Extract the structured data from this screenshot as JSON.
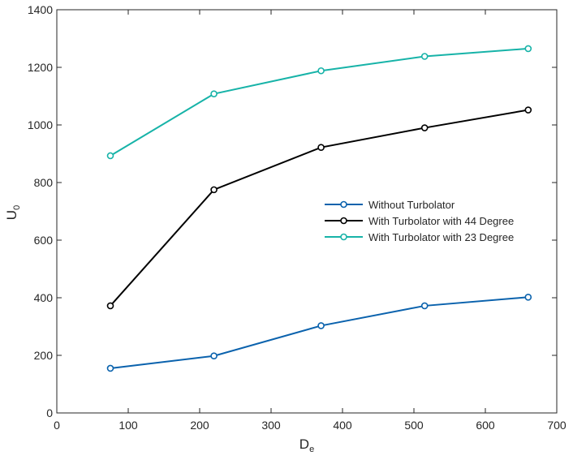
{
  "chart_data": {
    "type": "line",
    "xlabel": "D",
    "xlabel_sub": "e",
    "ylabel": "U",
    "ylabel_sub": "0",
    "xlim": [
      0,
      700
    ],
    "ylim": [
      0,
      1400
    ],
    "xticks": [
      0,
      100,
      200,
      300,
      400,
      500,
      600,
      700
    ],
    "yticks": [
      0,
      200,
      400,
      600,
      800,
      1000,
      1200,
      1400
    ],
    "grid": false,
    "legend_position": "center-right",
    "x": [
      75,
      220,
      370,
      515,
      660
    ],
    "series": [
      {
        "name": "Without Turbolator",
        "color": "#0a62ad",
        "values": [
          155,
          198,
          303,
          372,
          402
        ]
      },
      {
        "name": "With Turbolator with 44 Degree",
        "color": "#000000",
        "values": [
          372,
          775,
          922,
          990,
          1052
        ]
      },
      {
        "name": "With Turbolator with 23 Degree",
        "color": "#17b3a8",
        "values": [
          893,
          1108,
          1188,
          1238,
          1265
        ]
      }
    ]
  }
}
